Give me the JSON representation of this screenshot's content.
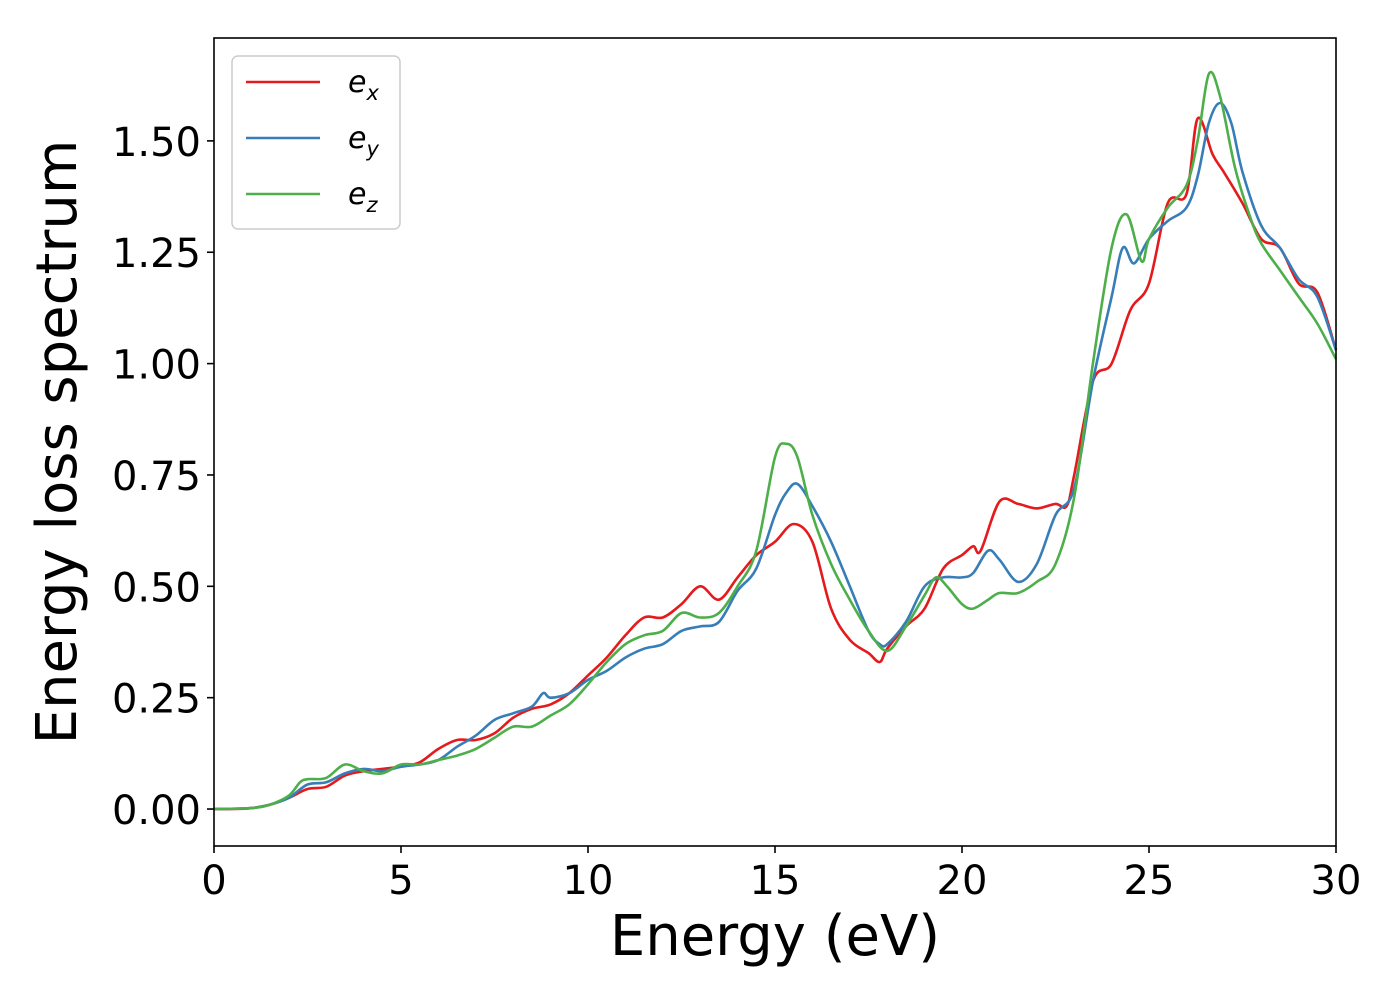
{
  "chart_data": {
    "type": "line",
    "title": "",
    "xlabel": "Energy (eV)",
    "ylabel": "Energy loss spectrum",
    "xlim": [
      0,
      30
    ],
    "ylim": [
      -0.083,
      1.731
    ],
    "xticks": [
      0,
      5,
      10,
      15,
      20,
      25,
      30
    ],
    "xtick_labels": [
      "0",
      "5",
      "10",
      "15",
      "20",
      "25",
      "30"
    ],
    "yticks": [
      0,
      0.25,
      0.5,
      0.75,
      1.0,
      1.25,
      1.5
    ],
    "ytick_labels": [
      "0.00",
      "0.25",
      "0.50",
      "0.75",
      "1.00",
      "1.25",
      "1.50"
    ],
    "grid": false,
    "legend_position": "top-left",
    "series": [
      {
        "name": "e_x",
        "label_base": "e",
        "label_sub": "x",
        "color": "#e41a1c",
        "x": [
          0,
          0.5,
          1,
          1.5,
          2,
          2.5,
          3,
          3.5,
          4,
          4.5,
          5,
          5.5,
          6,
          6.5,
          7,
          7.5,
          8,
          8.5,
          9,
          9.5,
          10,
          10.5,
          11,
          11.5,
          12,
          12.5,
          13,
          13.5,
          14,
          14.5,
          15,
          15.5,
          16,
          16.5,
          17,
          17.5,
          17.8,
          18,
          18.5,
          19,
          19.5,
          20,
          20.3,
          20.5,
          21,
          21.5,
          22,
          22.5,
          22.8,
          23,
          23.5,
          24,
          24.5,
          25,
          25.5,
          26,
          26.3,
          26.7,
          27,
          27.5,
          28,
          28.5,
          29,
          29.5,
          30
        ],
        "y": [
          0,
          0,
          0.002,
          0.01,
          0.025,
          0.045,
          0.05,
          0.075,
          0.085,
          0.09,
          0.095,
          0.105,
          0.135,
          0.155,
          0.155,
          0.17,
          0.205,
          0.225,
          0.235,
          0.26,
          0.3,
          0.34,
          0.39,
          0.43,
          0.43,
          0.46,
          0.5,
          0.47,
          0.52,
          0.57,
          0.6,
          0.64,
          0.6,
          0.45,
          0.38,
          0.35,
          0.33,
          0.36,
          0.41,
          0.45,
          0.54,
          0.57,
          0.59,
          0.58,
          0.69,
          0.685,
          0.675,
          0.685,
          0.68,
          0.75,
          0.96,
          1.0,
          1.12,
          1.18,
          1.36,
          1.38,
          1.55,
          1.47,
          1.43,
          1.36,
          1.28,
          1.26,
          1.18,
          1.16,
          1.03
        ]
      },
      {
        "name": "e_y",
        "label_base": "e",
        "label_sub": "y",
        "color": "#377eb8",
        "x": [
          0,
          1,
          1.5,
          2,
          2.5,
          3,
          3.5,
          4,
          4.5,
          5,
          5.5,
          6,
          6.5,
          7,
          7.5,
          8,
          8.5,
          8.8,
          9,
          9.5,
          10,
          10.5,
          11,
          11.5,
          12,
          12.5,
          13,
          13.5,
          14,
          14.5,
          15,
          15.3,
          15.6,
          16,
          16.5,
          17,
          17.5,
          17.8,
          18,
          18.5,
          19,
          19.5,
          20,
          20.3,
          20.7,
          21,
          21.5,
          22,
          22.5,
          23,
          23.5,
          24,
          24.3,
          24.6,
          25,
          25.5,
          26,
          26.3,
          26.6,
          26.9,
          27.2,
          27.5,
          28,
          28.5,
          29,
          29.5,
          30
        ],
        "y": [
          0,
          0.002,
          0.01,
          0.025,
          0.055,
          0.06,
          0.08,
          0.09,
          0.085,
          0.095,
          0.1,
          0.11,
          0.14,
          0.165,
          0.2,
          0.215,
          0.23,
          0.26,
          0.25,
          0.26,
          0.29,
          0.31,
          0.34,
          0.36,
          0.37,
          0.4,
          0.41,
          0.42,
          0.49,
          0.54,
          0.66,
          0.71,
          0.73,
          0.68,
          0.6,
          0.5,
          0.4,
          0.37,
          0.37,
          0.42,
          0.5,
          0.52,
          0.52,
          0.53,
          0.58,
          0.56,
          0.51,
          0.55,
          0.66,
          0.72,
          0.96,
          1.15,
          1.26,
          1.225,
          1.28,
          1.32,
          1.35,
          1.42,
          1.54,
          1.585,
          1.54,
          1.43,
          1.31,
          1.26,
          1.19,
          1.15,
          1.03
        ]
      },
      {
        "name": "e_z",
        "label_base": "e",
        "label_sub": "z",
        "color": "#4daf4a",
        "x": [
          0,
          1,
          1.5,
          2,
          2.3,
          2.5,
          3,
          3.5,
          4,
          4.5,
          5,
          5.5,
          6,
          6.5,
          7,
          7.5,
          8,
          8.5,
          9,
          9.5,
          10,
          10.5,
          11,
          11.5,
          12,
          12.5,
          13,
          13.5,
          14,
          14.5,
          15,
          15.3,
          15.6,
          16,
          16.5,
          17,
          17.5,
          18,
          18.5,
          19,
          19.3,
          19.6,
          20,
          20.3,
          20.7,
          21,
          21.5,
          22,
          22.5,
          23,
          23.5,
          24,
          24.4,
          24.8,
          25,
          25.5,
          26,
          26.3,
          26.6,
          26.9,
          27.3,
          27.7,
          28,
          28.5,
          29,
          29.5,
          30
        ],
        "y": [
          0,
          0.002,
          0.01,
          0.03,
          0.06,
          0.067,
          0.07,
          0.1,
          0.085,
          0.08,
          0.1,
          0.1,
          0.11,
          0.12,
          0.135,
          0.16,
          0.185,
          0.185,
          0.21,
          0.235,
          0.28,
          0.33,
          0.37,
          0.39,
          0.4,
          0.44,
          0.43,
          0.44,
          0.5,
          0.58,
          0.79,
          0.82,
          0.79,
          0.66,
          0.55,
          0.47,
          0.4,
          0.355,
          0.41,
          0.48,
          0.52,
          0.5,
          0.46,
          0.45,
          0.47,
          0.485,
          0.485,
          0.51,
          0.55,
          0.7,
          1.0,
          1.26,
          1.335,
          1.23,
          1.28,
          1.35,
          1.4,
          1.5,
          1.65,
          1.6,
          1.44,
          1.33,
          1.27,
          1.21,
          1.15,
          1.09,
          1.01
        ]
      }
    ]
  }
}
